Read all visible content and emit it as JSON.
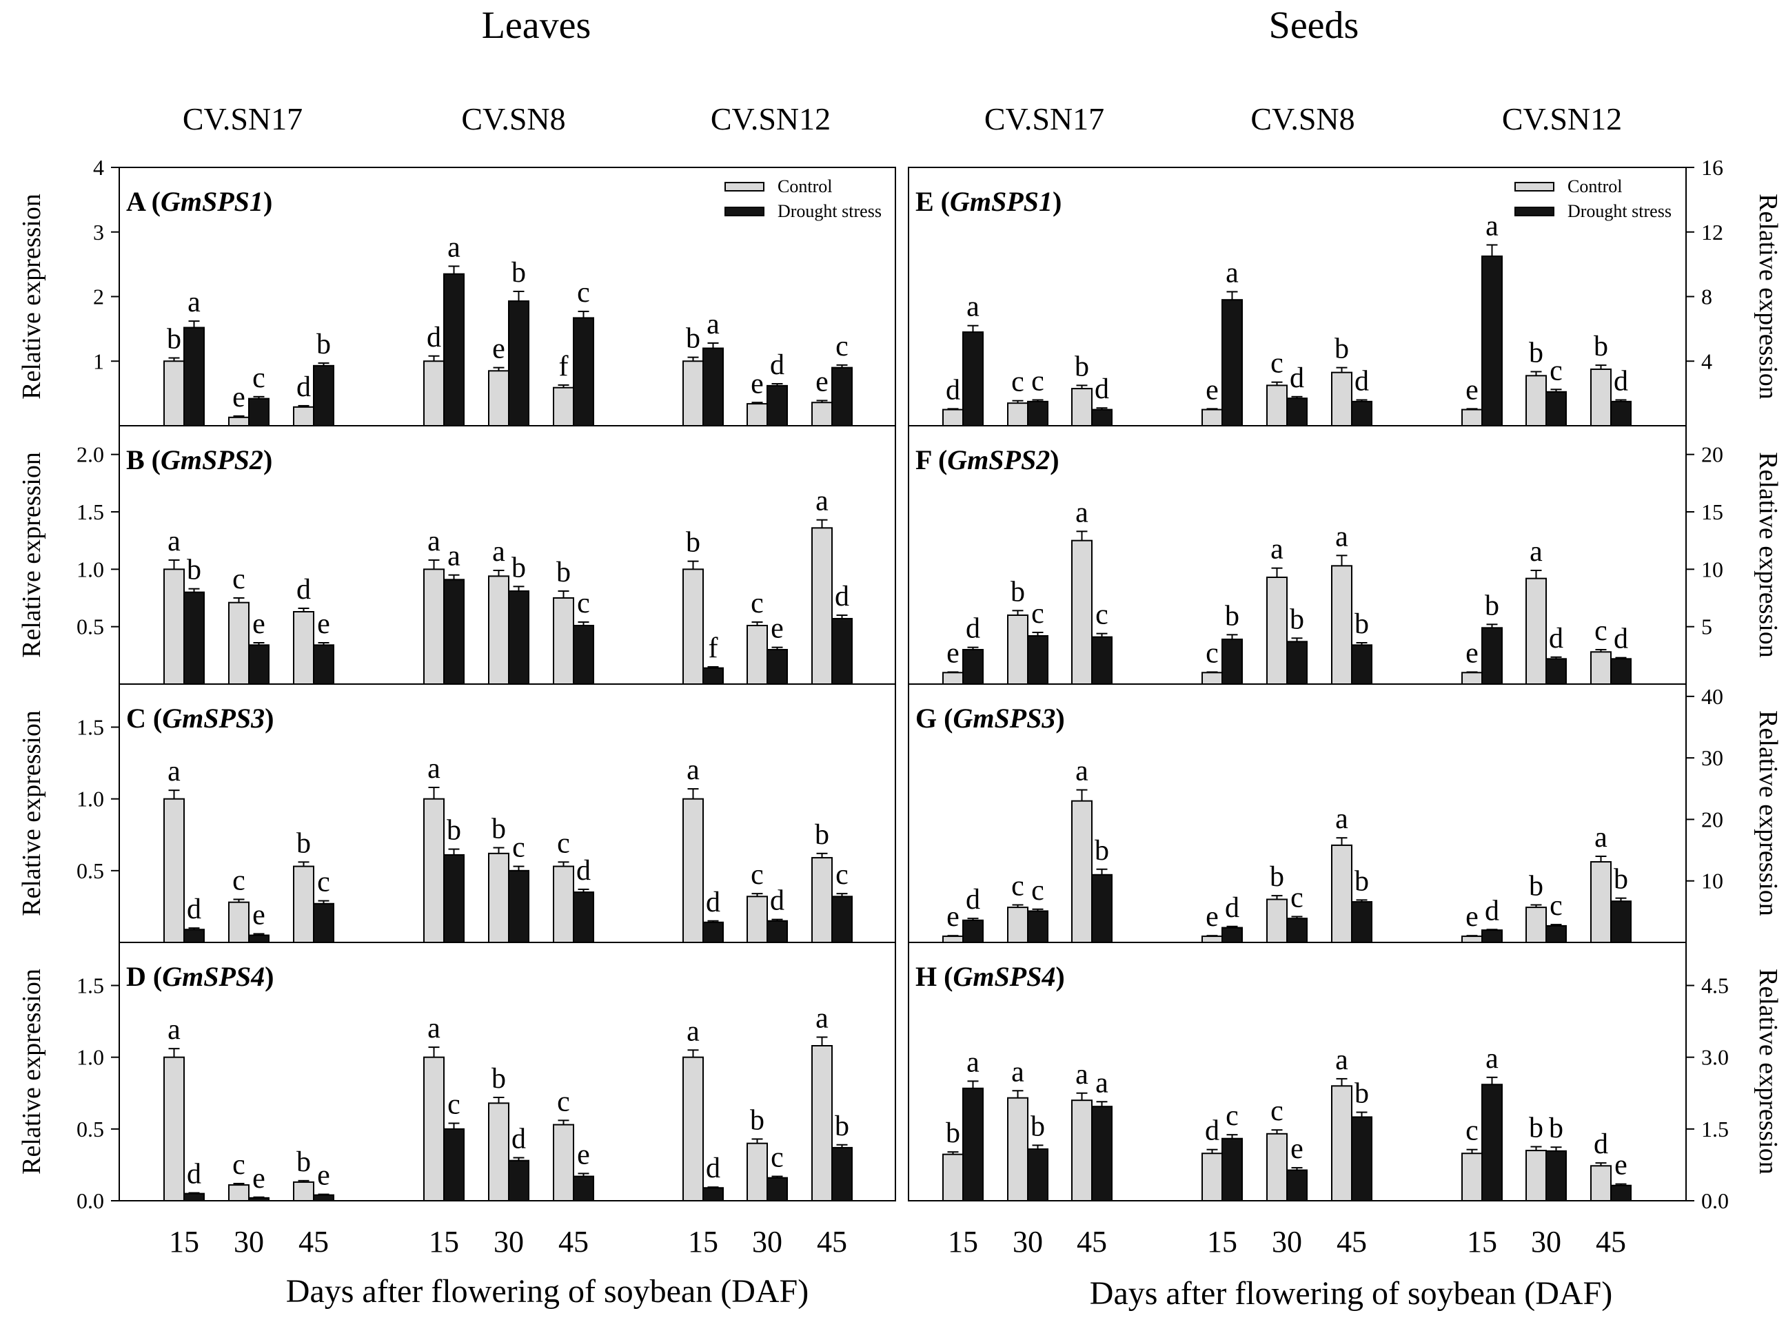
{
  "figure": {
    "left_header": "Leaves",
    "right_header": "Seeds",
    "cultivars": [
      "CV.SN17",
      "CV.SN8",
      "CV.SN12"
    ],
    "xlabel": "Days after flowering of soybean (DAF)",
    "ylabel": "Relative expression",
    "legend": [
      "Control",
      "Drought stress"
    ],
    "colors": {
      "control": "#d9d9d9",
      "drought": "#141414"
    }
  },
  "chart_data": [
    {
      "type": "bar",
      "panel": "A",
      "gene": "GmSPS1",
      "tissue": "Leaves",
      "ylim": [
        0,
        4
      ],
      "yticks": [
        "1",
        "2",
        "3",
        "4"
      ],
      "groups": [
        {
          "cultivar": "CV.SN17",
          "daf": [
            15,
            30,
            45
          ],
          "control": [
            1.0,
            0.13,
            0.29
          ],
          "drought": [
            1.52,
            0.42,
            0.93
          ],
          "control_err": [
            0.05,
            0.02,
            0.02
          ],
          "drought_err": [
            0.1,
            0.03,
            0.04
          ],
          "control_labels": [
            "b",
            "e",
            "d"
          ],
          "drought_labels": [
            "a",
            "c",
            "b"
          ]
        },
        {
          "cultivar": "CV.SN8",
          "daf": [
            15,
            30,
            45
          ],
          "control": [
            1.0,
            0.85,
            0.59
          ],
          "drought": [
            2.35,
            1.93,
            1.67
          ],
          "control_err": [
            0.08,
            0.05,
            0.04
          ],
          "drought_err": [
            0.12,
            0.15,
            0.1
          ],
          "control_labels": [
            "d",
            "e",
            "f"
          ],
          "drought_labels": [
            "a",
            "b",
            "c"
          ]
        },
        {
          "cultivar": "CV.SN12",
          "daf": [
            15,
            30,
            45
          ],
          "control": [
            1.0,
            0.34,
            0.36
          ],
          "drought": [
            1.2,
            0.62,
            0.9
          ],
          "control_err": [
            0.06,
            0.02,
            0.03
          ],
          "drought_err": [
            0.08,
            0.03,
            0.04
          ],
          "control_labels": [
            "b",
            "e",
            "e"
          ],
          "drought_labels": [
            "a",
            "d",
            "c"
          ]
        }
      ]
    },
    {
      "type": "bar",
      "panel": "B",
      "gene": "GmSPS2",
      "tissue": "Leaves",
      "ylim": [
        0,
        2.25
      ],
      "yticks": [
        "0.5",
        "1.0",
        "1.5",
        "2.0"
      ],
      "groups": [
        {
          "cultivar": "CV.SN17",
          "daf": [
            15,
            30,
            45
          ],
          "control": [
            1.0,
            0.71,
            0.63
          ],
          "drought": [
            0.8,
            0.34,
            0.34
          ],
          "control_err": [
            0.08,
            0.04,
            0.03
          ],
          "drought_err": [
            0.03,
            0.02,
            0.02
          ],
          "control_labels": [
            "a",
            "c",
            "d"
          ],
          "drought_labels": [
            "b",
            "e",
            "e"
          ]
        },
        {
          "cultivar": "CV.SN8",
          "daf": [
            15,
            30,
            45
          ],
          "control": [
            1.0,
            0.94,
            0.75
          ],
          "drought": [
            0.91,
            0.81,
            0.51
          ],
          "control_err": [
            0.08,
            0.05,
            0.06
          ],
          "drought_err": [
            0.04,
            0.04,
            0.03
          ],
          "control_labels": [
            "a",
            "a",
            "b"
          ],
          "drought_labels": [
            "a",
            "b",
            "c"
          ]
        },
        {
          "cultivar": "CV.SN12",
          "daf": [
            15,
            30,
            45
          ],
          "control": [
            1.0,
            0.51,
            1.36
          ],
          "drought": [
            0.14,
            0.3,
            0.57
          ],
          "control_err": [
            0.07,
            0.03,
            0.07
          ],
          "drought_err": [
            0.01,
            0.02,
            0.03
          ],
          "control_labels": [
            "b",
            "c",
            "a"
          ],
          "drought_labels": [
            "f",
            "e",
            "d"
          ]
        }
      ]
    },
    {
      "type": "bar",
      "panel": "C",
      "gene": "GmSPS3",
      "tissue": "Leaves",
      "ylim": [
        0,
        1.8
      ],
      "yticks": [
        "0.5",
        "1.0",
        "1.5"
      ],
      "groups": [
        {
          "cultivar": "CV.SN17",
          "daf": [
            15,
            30,
            45
          ],
          "control": [
            1.0,
            0.28,
            0.53
          ],
          "drought": [
            0.09,
            0.05,
            0.27
          ],
          "control_err": [
            0.06,
            0.02,
            0.03
          ],
          "drought_err": [
            0.01,
            0.01,
            0.02
          ],
          "control_labels": [
            "a",
            "c",
            "b"
          ],
          "drought_labels": [
            "d",
            "e",
            "c"
          ]
        },
        {
          "cultivar": "CV.SN8",
          "daf": [
            15,
            30,
            45
          ],
          "control": [
            1.0,
            0.62,
            0.53
          ],
          "drought": [
            0.61,
            0.5,
            0.35
          ],
          "control_err": [
            0.08,
            0.04,
            0.03
          ],
          "drought_err": [
            0.04,
            0.03,
            0.02
          ],
          "control_labels": [
            "a",
            "b",
            "c"
          ],
          "drought_labels": [
            "b",
            "c",
            "d"
          ]
        },
        {
          "cultivar": "CV.SN12",
          "daf": [
            15,
            30,
            45
          ],
          "control": [
            1.0,
            0.32,
            0.59
          ],
          "drought": [
            0.14,
            0.15,
            0.32
          ],
          "control_err": [
            0.07,
            0.02,
            0.03
          ],
          "drought_err": [
            0.01,
            0.01,
            0.02
          ],
          "control_labels": [
            "a",
            "c",
            "b"
          ],
          "drought_labels": [
            "d",
            "d",
            "c"
          ]
        }
      ]
    },
    {
      "type": "bar",
      "panel": "D",
      "gene": "GmSPS4",
      "tissue": "Leaves",
      "ylim": [
        0,
        1.8
      ],
      "yticks": [
        "0.0",
        "0.5",
        "1.0",
        "1.5"
      ],
      "groups": [
        {
          "cultivar": "CV.SN17",
          "daf": [
            15,
            30,
            45
          ],
          "control": [
            1.0,
            0.11,
            0.13
          ],
          "drought": [
            0.05,
            0.02,
            0.04
          ],
          "control_err": [
            0.06,
            0.01,
            0.01
          ],
          "drought_err": [
            0.005,
            0.005,
            0.005
          ],
          "control_labels": [
            "a",
            "c",
            "b"
          ],
          "drought_labels": [
            "d",
            "e",
            "e"
          ]
        },
        {
          "cultivar": "CV.SN8",
          "daf": [
            15,
            30,
            45
          ],
          "control": [
            1.0,
            0.68,
            0.53
          ],
          "drought": [
            0.5,
            0.28,
            0.17
          ],
          "control_err": [
            0.07,
            0.04,
            0.03
          ],
          "drought_err": [
            0.04,
            0.02,
            0.02
          ],
          "control_labels": [
            "a",
            "b",
            "c"
          ],
          "drought_labels": [
            "c",
            "d",
            "e"
          ]
        },
        {
          "cultivar": "CV.SN12",
          "daf": [
            15,
            30,
            45
          ],
          "control": [
            1.0,
            0.4,
            1.08
          ],
          "drought": [
            0.09,
            0.16,
            0.37
          ],
          "control_err": [
            0.05,
            0.03,
            0.06
          ],
          "drought_err": [
            0.005,
            0.01,
            0.02
          ],
          "control_labels": [
            "a",
            "b",
            "a"
          ],
          "drought_labels": [
            "d",
            "c",
            "b"
          ]
        }
      ]
    },
    {
      "type": "bar",
      "panel": "E",
      "gene": "GmSPS1",
      "tissue": "Seeds",
      "ylim": [
        0,
        16
      ],
      "yticks": [
        "4",
        "8",
        "12",
        "16"
      ],
      "groups": [
        {
          "cultivar": "CV.SN17",
          "daf": [
            15,
            30,
            45
          ],
          "control": [
            1.0,
            1.4,
            2.3
          ],
          "drought": [
            5.8,
            1.5,
            1.0
          ],
          "control_err": [
            0.05,
            0.15,
            0.2
          ],
          "drought_err": [
            0.4,
            0.1,
            0.1
          ],
          "control_labels": [
            "d",
            "c",
            "b"
          ],
          "drought_labels": [
            "a",
            "c",
            "d"
          ]
        },
        {
          "cultivar": "CV.SN8",
          "daf": [
            15,
            30,
            45
          ],
          "control": [
            1.0,
            2.5,
            3.3
          ],
          "drought": [
            7.8,
            1.7,
            1.5
          ],
          "control_err": [
            0.05,
            0.2,
            0.3
          ],
          "drought_err": [
            0.5,
            0.1,
            0.1
          ],
          "control_labels": [
            "e",
            "c",
            "b"
          ],
          "drought_labels": [
            "a",
            "d",
            "d"
          ]
        },
        {
          "cultivar": "CV.SN12",
          "daf": [
            15,
            30,
            45
          ],
          "control": [
            1.0,
            3.1,
            3.5
          ],
          "drought": [
            10.5,
            2.1,
            1.5
          ],
          "control_err": [
            0.05,
            0.25,
            0.25
          ],
          "drought_err": [
            0.7,
            0.15,
            0.1
          ],
          "control_labels": [
            "e",
            "b",
            "b"
          ],
          "drought_labels": [
            "a",
            "c",
            "d"
          ]
        }
      ]
    },
    {
      "type": "bar",
      "panel": "F",
      "gene": "GmSPS2",
      "tissue": "Seeds",
      "ylim": [
        0,
        22.5
      ],
      "yticks": [
        "5",
        "10",
        "15",
        "20"
      ],
      "groups": [
        {
          "cultivar": "CV.SN17",
          "daf": [
            15,
            30,
            45
          ],
          "control": [
            1.0,
            6.0,
            12.5
          ],
          "drought": [
            3.0,
            4.2,
            4.1
          ],
          "control_err": [
            0.05,
            0.4,
            0.8
          ],
          "drought_err": [
            0.2,
            0.3,
            0.3
          ],
          "control_labels": [
            "e",
            "b",
            "a"
          ],
          "drought_labels": [
            "d",
            "c",
            "c"
          ]
        },
        {
          "cultivar": "CV.SN8",
          "daf": [
            15,
            30,
            45
          ],
          "control": [
            1.0,
            9.3,
            10.3
          ],
          "drought": [
            3.9,
            3.7,
            3.4
          ],
          "control_err": [
            0.05,
            0.8,
            0.9
          ],
          "drought_err": [
            0.4,
            0.3,
            0.2
          ],
          "control_labels": [
            "c",
            "a",
            "a"
          ],
          "drought_labels": [
            "b",
            "b",
            "b"
          ]
        },
        {
          "cultivar": "CV.SN12",
          "daf": [
            15,
            30,
            45
          ],
          "control": [
            1.0,
            9.2,
            2.8
          ],
          "drought": [
            4.9,
            2.2,
            2.2
          ],
          "control_err": [
            0.05,
            0.7,
            0.2
          ],
          "drought_err": [
            0.3,
            0.15,
            0.1
          ],
          "control_labels": [
            "e",
            "a",
            "c"
          ],
          "drought_labels": [
            "b",
            "d",
            "d"
          ]
        }
      ]
    },
    {
      "type": "bar",
      "panel": "G",
      "gene": "GmSPS3",
      "tissue": "Seeds",
      "ylim": [
        0,
        42
      ],
      "yticks": [
        "10",
        "20",
        "30",
        "40"
      ],
      "groups": [
        {
          "cultivar": "CV.SN17",
          "daf": [
            15,
            30,
            45
          ],
          "control": [
            1.0,
            5.7,
            23.0
          ],
          "drought": [
            3.6,
            5.1,
            11.0
          ],
          "control_err": [
            0.1,
            0.4,
            1.8
          ],
          "drought_err": [
            0.3,
            0.3,
            0.9
          ],
          "control_labels": [
            "e",
            "c",
            "a"
          ],
          "drought_labels": [
            "d",
            "c",
            "b"
          ]
        },
        {
          "cultivar": "CV.SN8",
          "daf": [
            15,
            30,
            45
          ],
          "control": [
            1.0,
            7.0,
            15.8
          ],
          "drought": [
            2.4,
            3.9,
            6.6
          ],
          "control_err": [
            0.1,
            0.6,
            1.2
          ],
          "drought_err": [
            0.2,
            0.3,
            0.3
          ],
          "control_labels": [
            "e",
            "b",
            "a"
          ],
          "drought_labels": [
            "d",
            "c",
            "b"
          ]
        },
        {
          "cultivar": "CV.SN12",
          "daf": [
            15,
            30,
            45
          ],
          "control": [
            1.0,
            5.7,
            13.1
          ],
          "drought": [
            2.0,
            2.7,
            6.7
          ],
          "control_err": [
            0.1,
            0.4,
            0.9
          ],
          "drought_err": [
            0.1,
            0.2,
            0.5
          ],
          "control_labels": [
            "e",
            "b",
            "a"
          ],
          "drought_labels": [
            "d",
            "c",
            "b"
          ]
        }
      ]
    },
    {
      "type": "bar",
      "panel": "H",
      "gene": "GmSPS4",
      "tissue": "Seeds",
      "ylim": [
        0,
        5.4
      ],
      "yticks": [
        "0.0",
        "1.5",
        "3.0",
        "4.5"
      ],
      "groups": [
        {
          "cultivar": "CV.SN17",
          "daf": [
            15,
            30,
            45
          ],
          "control": [
            0.97,
            2.15,
            2.1
          ],
          "drought": [
            2.35,
            1.08,
            1.97
          ],
          "control_err": [
            0.05,
            0.15,
            0.15
          ],
          "drought_err": [
            0.15,
            0.08,
            0.1
          ],
          "control_labels": [
            "b",
            "a",
            "a"
          ],
          "drought_labels": [
            "a",
            "b",
            "a"
          ]
        },
        {
          "cultivar": "CV.SN8",
          "daf": [
            15,
            30,
            45
          ],
          "control": [
            0.99,
            1.4,
            2.4
          ],
          "drought": [
            1.3,
            0.64,
            1.75
          ],
          "control_err": [
            0.08,
            0.08,
            0.15
          ],
          "drought_err": [
            0.08,
            0.05,
            0.1
          ],
          "control_labels": [
            "d",
            "c",
            "a"
          ],
          "drought_labels": [
            "c",
            "e",
            "b"
          ]
        },
        {
          "cultivar": "CV.SN12",
          "daf": [
            15,
            30,
            45
          ],
          "control": [
            0.99,
            1.05,
            0.73
          ],
          "drought": [
            2.43,
            1.04,
            0.32
          ],
          "control_err": [
            0.08,
            0.08,
            0.06
          ],
          "drought_err": [
            0.15,
            0.08,
            0.03
          ],
          "control_labels": [
            "c",
            "b",
            "d"
          ],
          "drought_labels": [
            "a",
            "b",
            "e"
          ]
        }
      ]
    }
  ]
}
